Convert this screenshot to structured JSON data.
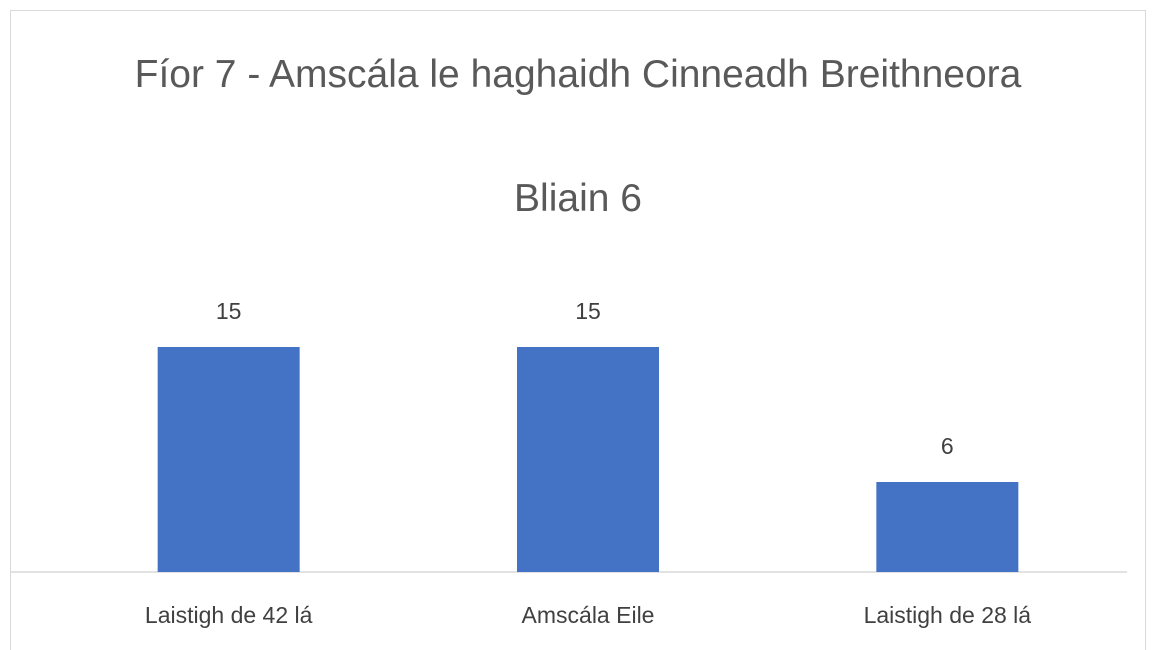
{
  "chart_data": {
    "type": "bar",
    "title": "Fíor 7 - Amscála le haghaidh Cinneadh Breithneora",
    "subtitle": "Bliain 6",
    "categories": [
      "Laistigh de 42 lá",
      "Amscála Eile",
      "Laistigh de 28 lá"
    ],
    "values": [
      15,
      15,
      6
    ],
    "color": "#4472c4"
  }
}
